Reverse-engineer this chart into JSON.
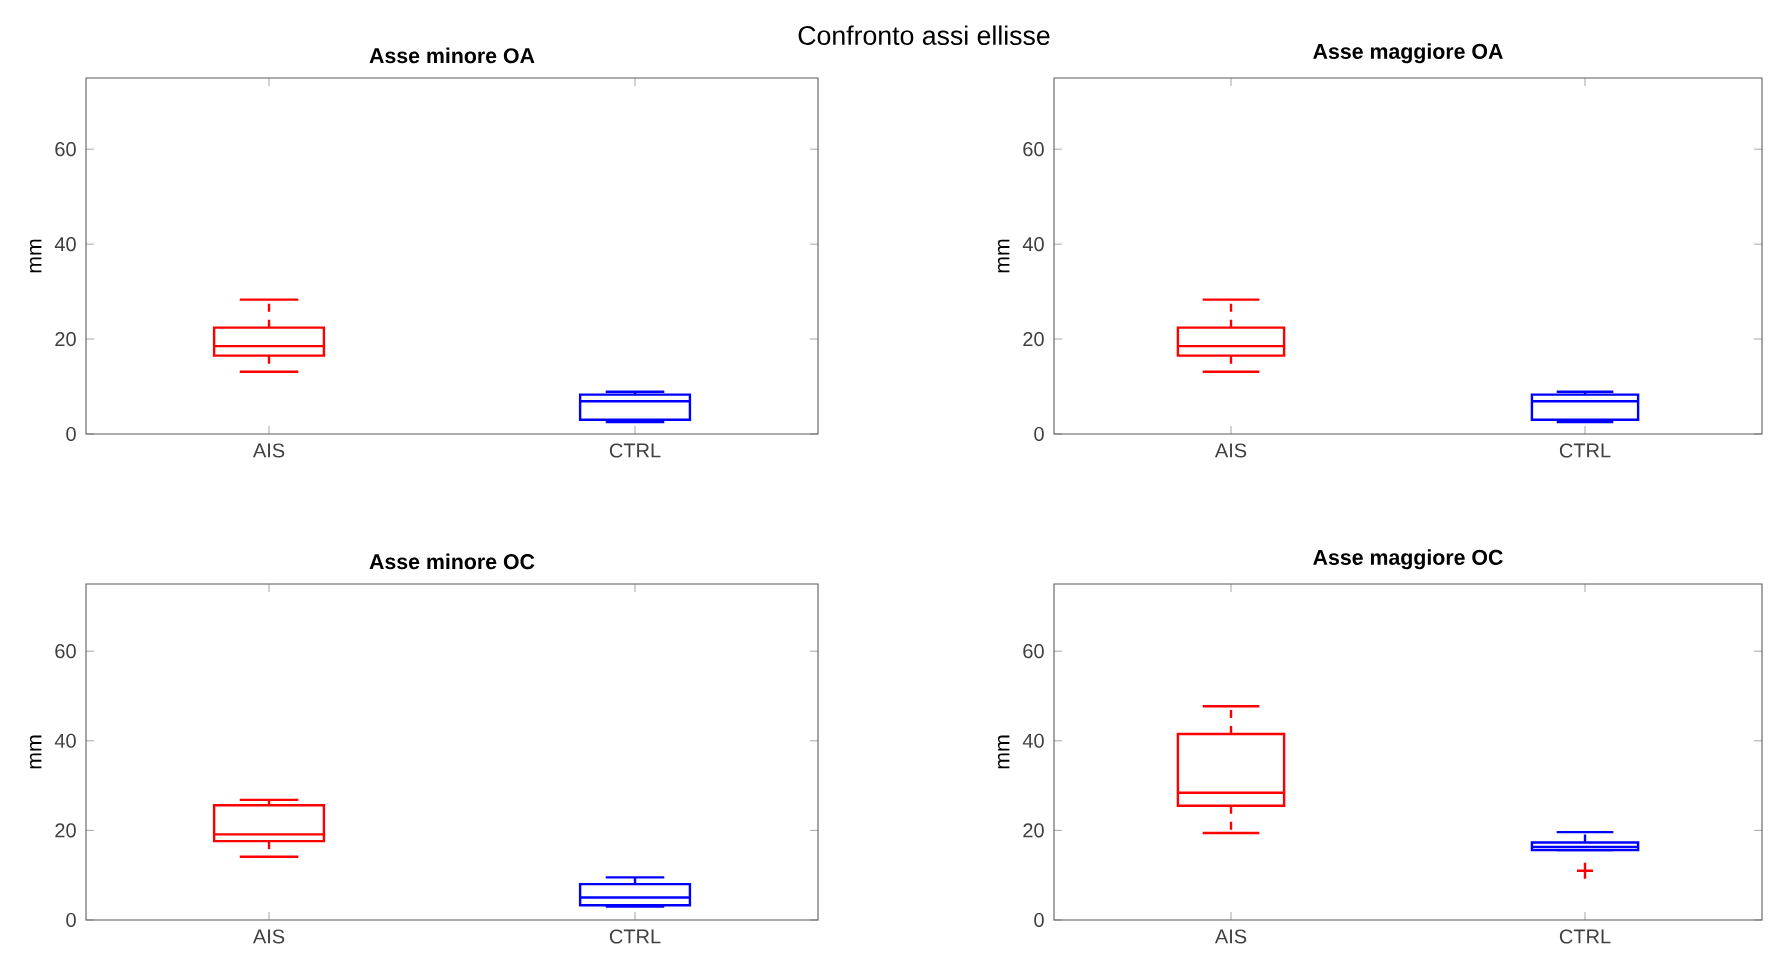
{
  "chart_data": [
    {
      "type": "box",
      "title": "Asse minore OA",
      "ylabel": "mm",
      "annotations": [
        "Confronto assi ellisse"
      ],
      "categories": [
        "AIS",
        "CTRL"
      ],
      "colors": [
        "#ff0000",
        "#0000ff"
      ],
      "ylim": [
        0,
        75
      ],
      "yticks": [
        0,
        20,
        40,
        60
      ],
      "boxes": [
        {
          "low": 13.1,
          "q1": 16.5,
          "median": 18.5,
          "q3": 22.4,
          "high": 28.3
        },
        {
          "low": 2.5,
          "q1": 3.0,
          "median": 6.9,
          "q3": 8.3,
          "high": 8.9
        }
      ]
    },
    {
      "type": "box",
      "title": "Asse maggiore OA",
      "ylabel": "mm",
      "categories": [
        "AIS",
        "CTRL"
      ],
      "colors": [
        "#ff0000",
        "#0000ff"
      ],
      "ylim": [
        0,
        75
      ],
      "yticks": [
        0,
        20,
        40,
        60
      ],
      "boxes": [
        {
          "low": 13.1,
          "q1": 16.5,
          "median": 18.5,
          "q3": 22.4,
          "high": 28.3
        },
        {
          "low": 2.5,
          "q1": 3.0,
          "median": 6.9,
          "q3": 8.3,
          "high": 8.9
        }
      ]
    },
    {
      "type": "box",
      "title": "Asse minore OC",
      "ylabel": "mm",
      "categories": [
        "AIS",
        "CTRL"
      ],
      "colors": [
        "#ff0000",
        "#0000ff"
      ],
      "ylim": [
        0,
        75
      ],
      "yticks": [
        0,
        20,
        40,
        60
      ],
      "boxes": [
        {
          "low": 14.1,
          "q1": 17.6,
          "median": 19.1,
          "q3": 25.6,
          "high": 26.8
        },
        {
          "low": 3.0,
          "q1": 3.3,
          "median": 5.0,
          "q3": 8.0,
          "high": 9.5
        }
      ]
    },
    {
      "type": "box",
      "title": "Asse maggiore OC",
      "ylabel": "mm",
      "categories": [
        "AIS",
        "CTRL"
      ],
      "colors": [
        "#ff0000",
        "#0000ff"
      ],
      "ylim": [
        0,
        75
      ],
      "yticks": [
        0,
        20,
        40,
        60
      ],
      "marker": "cross",
      "boxes": [
        {
          "low": 19.4,
          "q1": 25.5,
          "median": 28.4,
          "q3": 41.5,
          "high": 47.7
        },
        {
          "low": 15.6,
          "q1": 15.6,
          "median": 16.3,
          "q3": 17.3,
          "high": 19.6,
          "outliers": [
            11.0
          ]
        }
      ]
    }
  ]
}
